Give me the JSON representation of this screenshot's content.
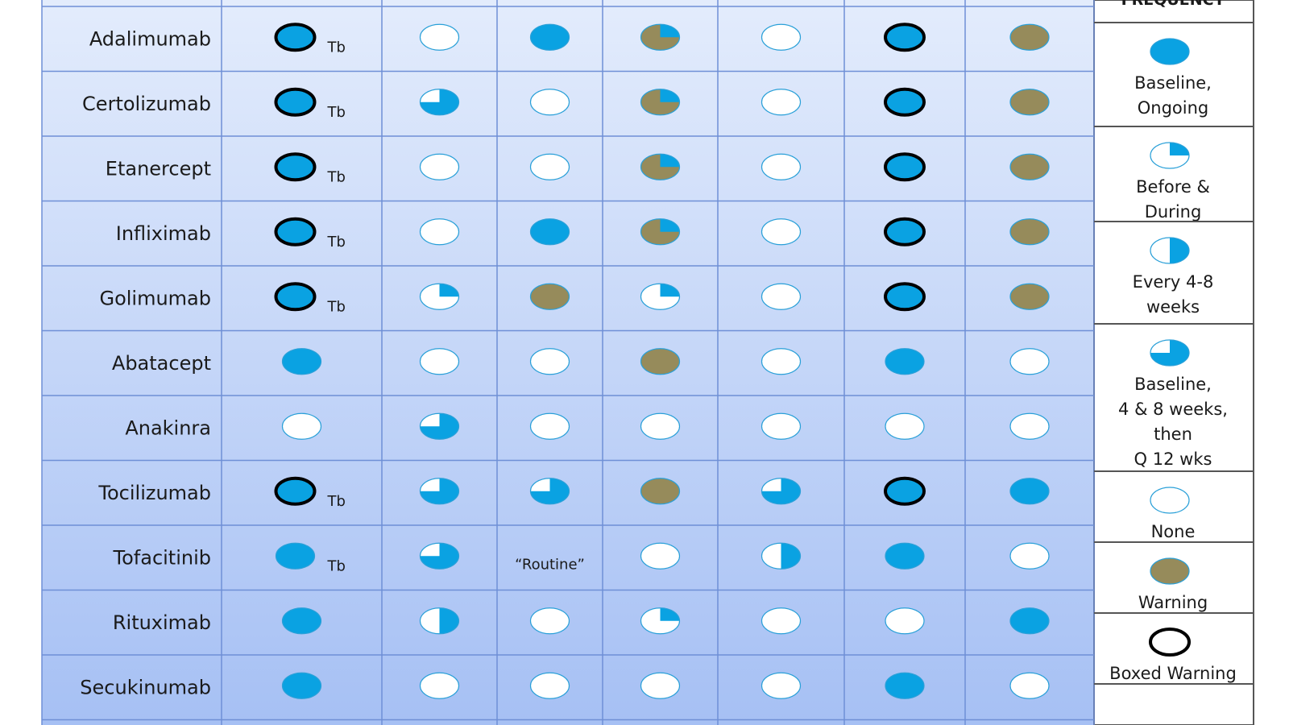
{
  "legend": {
    "title": "FREQUENCY",
    "items": [
      {
        "symbol": "full",
        "lines": [
          "Baseline,",
          "Ongoing"
        ]
      },
      {
        "symbol": "quarter",
        "lines": [
          "Before &",
          "During"
        ]
      },
      {
        "symbol": "half",
        "lines": [
          "Every 4-8",
          "weeks"
        ]
      },
      {
        "symbol": "threequarter",
        "lines": [
          "Baseline,",
          "4 & 8 weeks,",
          "then",
          "Q 12 wks"
        ]
      },
      {
        "symbol": "none",
        "lines": [
          "None"
        ]
      },
      {
        "symbol": "warning",
        "lines": [
          "Warning"
        ]
      },
      {
        "symbol": "ring",
        "lines": [
          "Boxed Warning"
        ]
      }
    ]
  },
  "table": {
    "rows": [
      {
        "name": "Adalimumab",
        "cells": [
          {
            "symbol": "boxed",
            "note": "Tb"
          },
          {
            "symbol": "none"
          },
          {
            "symbol": "full"
          },
          {
            "symbol": "warning-quarter"
          },
          {
            "symbol": "none"
          },
          {
            "symbol": "boxed"
          },
          {
            "symbol": "warning"
          }
        ]
      },
      {
        "name": "Certolizumab",
        "cells": [
          {
            "symbol": "boxed",
            "note": "Tb"
          },
          {
            "symbol": "threequarter"
          },
          {
            "symbol": "none"
          },
          {
            "symbol": "warning-quarter"
          },
          {
            "symbol": "none"
          },
          {
            "symbol": "boxed"
          },
          {
            "symbol": "warning"
          }
        ]
      },
      {
        "name": "Etanercept",
        "cells": [
          {
            "symbol": "boxed",
            "note": "Tb"
          },
          {
            "symbol": "none"
          },
          {
            "symbol": "none"
          },
          {
            "symbol": "warning-quarter"
          },
          {
            "symbol": "none"
          },
          {
            "symbol": "boxed"
          },
          {
            "symbol": "warning"
          }
        ]
      },
      {
        "name": "Infliximab",
        "cells": [
          {
            "symbol": "boxed",
            "note": "Tb"
          },
          {
            "symbol": "none"
          },
          {
            "symbol": "full"
          },
          {
            "symbol": "warning-quarter"
          },
          {
            "symbol": "none"
          },
          {
            "symbol": "boxed"
          },
          {
            "symbol": "warning"
          }
        ]
      },
      {
        "name": "Golimumab",
        "cells": [
          {
            "symbol": "boxed",
            "note": "Tb"
          },
          {
            "symbol": "quarter"
          },
          {
            "symbol": "warning"
          },
          {
            "symbol": "quarter"
          },
          {
            "symbol": "none"
          },
          {
            "symbol": "boxed"
          },
          {
            "symbol": "warning"
          }
        ]
      },
      {
        "name": "Abatacept",
        "cells": [
          {
            "symbol": "full"
          },
          {
            "symbol": "none"
          },
          {
            "symbol": "none"
          },
          {
            "symbol": "warning"
          },
          {
            "symbol": "none"
          },
          {
            "symbol": "full"
          },
          {
            "symbol": "none"
          }
        ]
      },
      {
        "name": "Anakinra",
        "cells": [
          {
            "symbol": "none"
          },
          {
            "symbol": "threequarter"
          },
          {
            "symbol": "none"
          },
          {
            "symbol": "none"
          },
          {
            "symbol": "none"
          },
          {
            "symbol": "none"
          },
          {
            "symbol": "none"
          }
        ]
      },
      {
        "name": "Tocilizumab",
        "cells": [
          {
            "symbol": "boxed",
            "note": "Tb"
          },
          {
            "symbol": "threequarter"
          },
          {
            "symbol": "threequarter"
          },
          {
            "symbol": "warning"
          },
          {
            "symbol": "threequarter"
          },
          {
            "symbol": "boxed"
          },
          {
            "symbol": "full"
          }
        ]
      },
      {
        "name": "Tofacitinib",
        "cells": [
          {
            "symbol": "full",
            "note": "Tb"
          },
          {
            "symbol": "threequarter"
          },
          {
            "text": "“Routine”"
          },
          {
            "symbol": "none"
          },
          {
            "symbol": "half"
          },
          {
            "symbol": "full"
          },
          {
            "symbol": "none"
          }
        ]
      },
      {
        "name": "Rituximab",
        "cells": [
          {
            "symbol": "full"
          },
          {
            "symbol": "half"
          },
          {
            "symbol": "none"
          },
          {
            "symbol": "quarter"
          },
          {
            "symbol": "none"
          },
          {
            "symbol": "none"
          },
          {
            "symbol": "full"
          }
        ]
      },
      {
        "name": "Secukinumab",
        "cells": [
          {
            "symbol": "full"
          },
          {
            "symbol": "none"
          },
          {
            "symbol": "none"
          },
          {
            "symbol": "none"
          },
          {
            "symbol": "none"
          },
          {
            "symbol": "full"
          },
          {
            "symbol": "none"
          }
        ]
      }
    ]
  }
}
